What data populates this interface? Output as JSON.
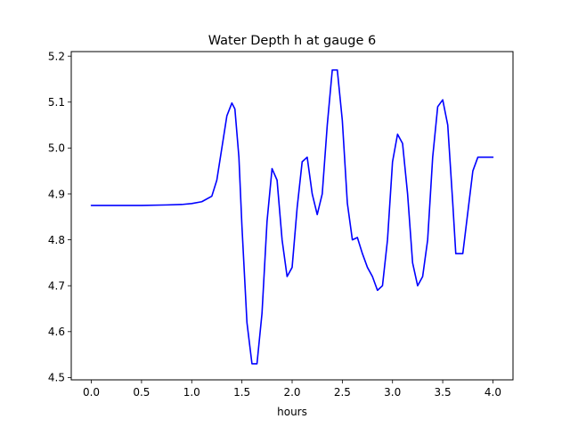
{
  "chart_data": {
    "type": "line",
    "title": "Water Depth h at gauge 6",
    "xlabel": "hours",
    "ylabel": "",
    "xlim": [
      -0.2,
      4.2
    ],
    "ylim": [
      4.495,
      5.21
    ],
    "x_ticks": [
      0.0,
      0.5,
      1.0,
      1.5,
      2.0,
      2.5,
      3.0,
      3.5,
      4.0
    ],
    "x_tick_labels": [
      "0.0",
      "0.5",
      "1.0",
      "1.5",
      "2.0",
      "2.5",
      "3.0",
      "3.5",
      "4.0"
    ],
    "y_ticks": [
      4.5,
      4.6,
      4.7,
      4.8,
      4.9,
      5.0,
      5.1,
      5.2
    ],
    "y_tick_labels": [
      "4.5",
      "4.6",
      "4.7",
      "4.8",
      "4.9",
      "5.0",
      "5.1",
      "5.2"
    ],
    "grid": false,
    "series": [
      {
        "color": "#0000ff",
        "x": [
          0.0,
          0.25,
          0.5,
          0.75,
          0.9,
          1.0,
          1.1,
          1.2,
          1.25,
          1.3,
          1.35,
          1.4,
          1.43,
          1.47,
          1.5,
          1.55,
          1.6,
          1.65,
          1.7,
          1.75,
          1.8,
          1.85,
          1.9,
          1.95,
          2.0,
          2.05,
          2.1,
          2.15,
          2.2,
          2.25,
          2.3,
          2.35,
          2.4,
          2.45,
          2.5,
          2.55,
          2.6,
          2.65,
          2.7,
          2.75,
          2.8,
          2.85,
          2.9,
          2.95,
          3.0,
          3.05,
          3.1,
          3.15,
          3.2,
          3.25,
          3.3,
          3.35,
          3.4,
          3.45,
          3.5,
          3.55,
          3.6,
          3.63,
          3.7,
          3.75,
          3.8,
          3.85,
          3.9,
          3.95,
          4.0
        ],
        "y": [
          4.875,
          4.875,
          4.875,
          4.876,
          4.877,
          4.879,
          4.883,
          4.895,
          4.93,
          5.0,
          5.07,
          5.098,
          5.085,
          4.98,
          4.83,
          4.62,
          4.53,
          4.53,
          4.64,
          4.84,
          4.955,
          4.93,
          4.8,
          4.72,
          4.74,
          4.87,
          4.97,
          4.98,
          4.9,
          4.855,
          4.9,
          5.05,
          5.17,
          5.17,
          5.06,
          4.88,
          4.8,
          4.805,
          4.77,
          4.74,
          4.72,
          4.69,
          4.7,
          4.8,
          4.97,
          5.03,
          5.01,
          4.9,
          4.75,
          4.7,
          4.72,
          4.8,
          4.98,
          5.09,
          5.105,
          5.05,
          4.88,
          4.77,
          4.77,
          4.86,
          4.95,
          4.98,
          4.98,
          4.98,
          4.98
        ]
      }
    ]
  }
}
